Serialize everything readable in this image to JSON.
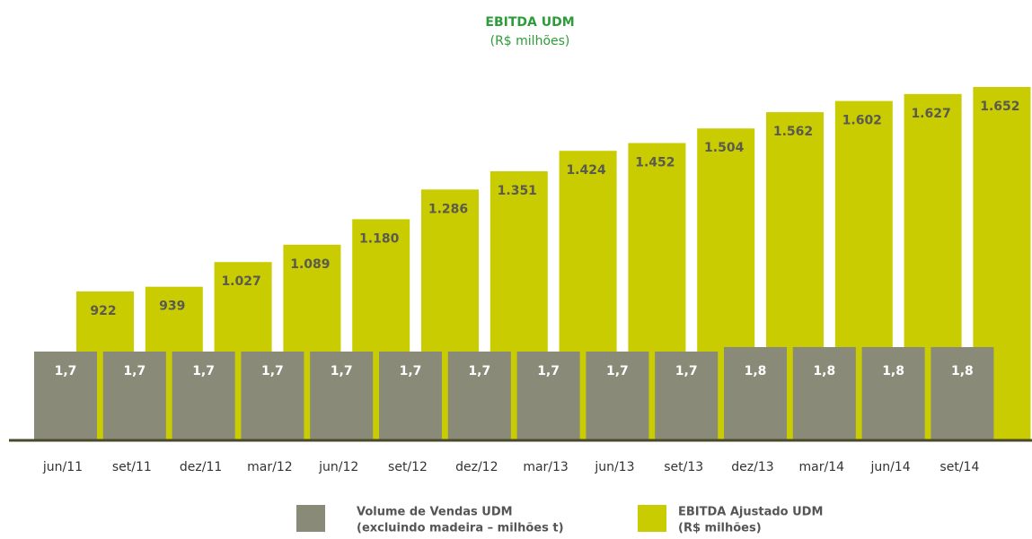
{
  "chart_data": {
    "type": "bar",
    "title": "EBITDA UDM",
    "subtitle": "(R$ milhões)",
    "categories": [
      "jun/11",
      "set/11",
      "dez/11",
      "mar/12",
      "jun/12",
      "set/12",
      "dez/12",
      "mar/13",
      "jun/13",
      "set/13",
      "dez/13",
      "mar/14",
      "jun/14",
      "set/14"
    ],
    "series": [
      {
        "name": "Volume de Vendas UDM",
        "unit_label": "(excluindo madeira – milhões t)",
        "color": "#8a8a78",
        "values": [
          1.7,
          1.7,
          1.7,
          1.7,
          1.7,
          1.7,
          1.7,
          1.7,
          1.7,
          1.7,
          1.8,
          1.8,
          1.8,
          1.8
        ],
        "value_labels": [
          "1,7",
          "1,7",
          "1,7",
          "1,7",
          "1,7",
          "1,7",
          "1,7",
          "1,7",
          "1,7",
          "1,7",
          "1,8",
          "1,8",
          "1,8",
          "1,8"
        ]
      },
      {
        "name": "EBITDA Ajustado UDM",
        "unit_label": "(R$ milhões)",
        "color": "#c8cc00",
        "values": [
          922,
          939,
          1027,
          1089,
          1180,
          1286,
          1351,
          1424,
          1452,
          1504,
          1562,
          1602,
          1627,
          1652
        ],
        "value_labels": [
          "922",
          "939",
          "1.027",
          "1.089",
          "1.180",
          "1.286",
          "1.351",
          "1.424",
          "1.452",
          "1.504",
          "1.562",
          "1.602",
          "1.627",
          "1.652"
        ]
      }
    ]
  }
}
